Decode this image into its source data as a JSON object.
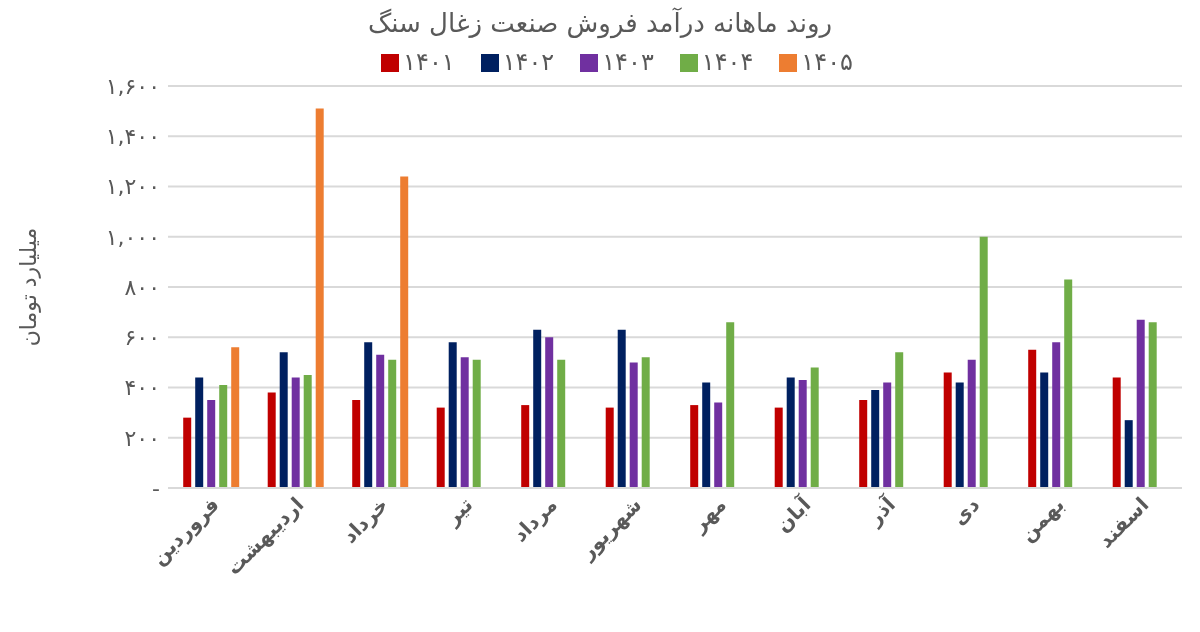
{
  "chart_data": {
    "type": "bar",
    "title": "روند ماهانه درآمد فروش صنعت زغال سنگ",
    "ylabel": "میلیارد تومان",
    "categories": [
      "فروردین",
      "اردیبهشت",
      "خرداد",
      "تیر",
      "مرداد",
      "شهریور",
      "مهر",
      "آبان",
      "آذر",
      "دی",
      "بهمن",
      "اسفند"
    ],
    "series": [
      {
        "name": "۱۴۰۱",
        "color": "#c00000",
        "values": [
          280,
          380,
          350,
          320,
          330,
          320,
          330,
          320,
          350,
          460,
          550,
          440
        ]
      },
      {
        "name": "۱۴۰۲",
        "color": "#002060",
        "values": [
          440,
          540,
          580,
          580,
          630,
          630,
          420,
          440,
          390,
          420,
          460,
          270
        ]
      },
      {
        "name": "۱۴۰۳",
        "color": "#7030a0",
        "values": [
          350,
          440,
          530,
          520,
          600,
          500,
          340,
          430,
          420,
          510,
          580,
          670
        ]
      },
      {
        "name": "۱۴۰۴",
        "color": "#70ad47",
        "values": [
          410,
          450,
          510,
          510,
          510,
          520,
          660,
          480,
          540,
          1000,
          830,
          660
        ]
      },
      {
        "name": "۱۴۰۵",
        "color": "#ed7d31",
        "values": [
          560,
          1510,
          1240,
          null,
          null,
          null,
          null,
          null,
          null,
          null,
          null,
          null
        ]
      }
    ],
    "ylim": [
      0,
      1600
    ],
    "yticks": [
      {
        "value": 0,
        "label": "-"
      },
      {
        "value": 200,
        "label": "۲۰۰"
      },
      {
        "value": 400,
        "label": "۴۰۰"
      },
      {
        "value": 600,
        "label": "۶۰۰"
      },
      {
        "value": 800,
        "label": "۸۰۰"
      },
      {
        "value": 1000,
        "label": "۱,۰۰۰"
      },
      {
        "value": 1200,
        "label": "۱,۲۰۰"
      },
      {
        "value": 1400,
        "label": "۱,۴۰۰"
      },
      {
        "value": 1600,
        "label": "۱,۶۰۰"
      }
    ],
    "grid": "y",
    "legend": "top"
  }
}
